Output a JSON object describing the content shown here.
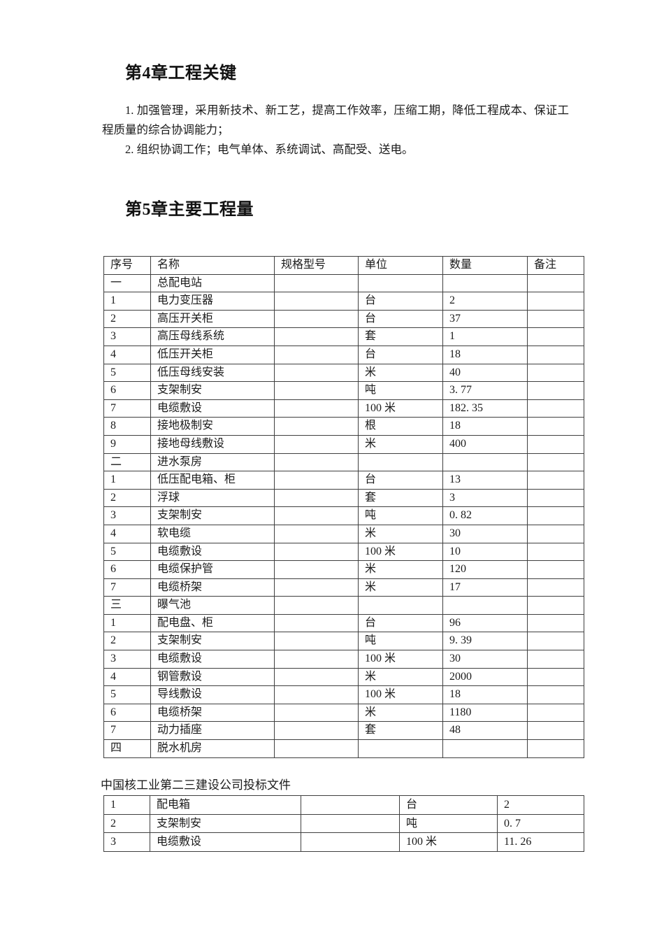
{
  "chapter4": {
    "title": "第4章工程关键",
    "paragraphs": [
      "1. 加强管理，采用新技术、新工艺，提高工作效率，压缩工期，降低工程成本、保证工程质量的综合协调能力；",
      "2. 组织协调工作；电气单体、系统调试、高配受、送电。"
    ]
  },
  "chapter5": {
    "title": "第5章主要工程量"
  },
  "table1": {
    "headers": [
      "序号",
      "名称",
      "规格型号",
      "单位",
      "数量",
      "备注"
    ],
    "rows": [
      [
        "一",
        "总配电站",
        "",
        "",
        "",
        ""
      ],
      [
        "1",
        "电力变压器",
        "",
        "台",
        "2",
        ""
      ],
      [
        "2",
        "高压开关柜",
        "",
        "台",
        "37",
        ""
      ],
      [
        "3",
        "高压母线系统",
        "",
        "套",
        "1",
        ""
      ],
      [
        "4",
        "低压开关柜",
        "",
        "台",
        "18",
        ""
      ],
      [
        "5",
        "低压母线安装",
        "",
        "米",
        "40",
        ""
      ],
      [
        "6",
        "支架制安",
        "",
        "吨",
        "3. 77",
        ""
      ],
      [
        "7",
        "电缆敷设",
        "",
        "100 米",
        "182. 35",
        ""
      ],
      [
        "8",
        "接地极制安",
        "",
        "根",
        "18",
        ""
      ],
      [
        "9",
        "接地母线敷设",
        "",
        "米",
        "400",
        ""
      ],
      [
        "二",
        "进水泵房",
        "",
        "",
        "",
        ""
      ],
      [
        "1",
        "低压配电箱、柜",
        "",
        "台",
        "13",
        ""
      ],
      [
        "2",
        "浮球",
        "",
        "套",
        "3",
        ""
      ],
      [
        "3",
        "支架制安",
        "",
        "吨",
        "0. 82",
        ""
      ],
      [
        "4",
        "软电缆",
        "",
        "米",
        "30",
        ""
      ],
      [
        "5",
        "电缆敷设",
        "",
        "100 米",
        "10",
        ""
      ],
      [
        "6",
        "电缆保护管",
        "",
        "米",
        "120",
        ""
      ],
      [
        "7",
        "电缆桥架",
        "",
        "米",
        "17",
        ""
      ],
      [
        "三",
        "曝气池",
        "",
        "",
        "",
        ""
      ],
      [
        "1",
        "配电盘、柜",
        "",
        "台",
        "96",
        ""
      ],
      [
        "2",
        "支架制安",
        "",
        "吨",
        "9. 39",
        ""
      ],
      [
        "3",
        "电缆敷设",
        "",
        "100 米",
        "30",
        ""
      ],
      [
        "4",
        "钢管敷设",
        "",
        "米",
        "2000",
        ""
      ],
      [
        "5",
        "导线敷设",
        "",
        "100 米",
        "18",
        ""
      ],
      [
        "6",
        "电缆桥架",
        "",
        "米",
        "1180",
        ""
      ],
      [
        "7",
        "动力插座",
        "",
        "套",
        "48",
        ""
      ],
      [
        "四",
        "脱水机房",
        "",
        "",
        "",
        ""
      ]
    ]
  },
  "footer": {
    "text": "中国核工业第二三建设公司投标文件"
  },
  "table2": {
    "rows": [
      [
        "1",
        "配电箱",
        "",
        "台",
        "2"
      ],
      [
        "2",
        "支架制安",
        "",
        "吨",
        "0. 7"
      ],
      [
        "3",
        "电缆敷设",
        "",
        "100 米",
        "11. 26"
      ]
    ]
  }
}
